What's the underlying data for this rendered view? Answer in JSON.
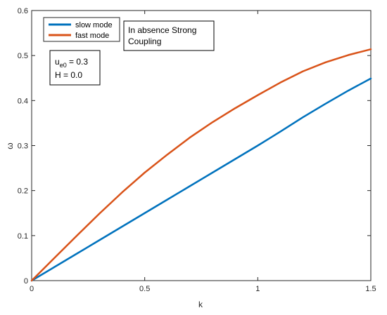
{
  "chart_data": {
    "type": "line",
    "title": "",
    "xlabel": "k",
    "ylabel": "ω",
    "xlim": [
      0,
      1.5
    ],
    "ylim": [
      0,
      0.6
    ],
    "xticks": [
      0,
      0.5,
      1,
      1.5
    ],
    "xtick_labels": [
      "0",
      "0.5",
      "1",
      "1.5"
    ],
    "yticks": [
      0,
      0.1,
      0.2,
      0.3,
      0.4,
      0.5,
      0.6
    ],
    "ytick_labels": [
      "0",
      "0.1",
      "0.2",
      "0.3",
      "0.4",
      "0.5",
      "0.6"
    ],
    "grid": false,
    "legend_position": "top-left",
    "x": [
      0,
      0.1,
      0.2,
      0.3,
      0.4,
      0.5,
      0.6,
      0.7,
      0.8,
      0.9,
      1.0,
      1.1,
      1.2,
      1.3,
      1.4,
      1.5
    ],
    "series": [
      {
        "name": "slow mode",
        "color": "#0072bd",
        "values": [
          0,
          0.03,
          0.06,
          0.09,
          0.12,
          0.15,
          0.18,
          0.21,
          0.24,
          0.27,
          0.3,
          0.331,
          0.363,
          0.393,
          0.422,
          0.449
        ]
      },
      {
        "name": "fast mode",
        "color": "#d95319",
        "values": [
          0,
          0.05,
          0.1,
          0.149,
          0.196,
          0.24,
          0.28,
          0.318,
          0.352,
          0.383,
          0.412,
          0.44,
          0.465,
          0.485,
          0.501,
          0.514
        ]
      }
    ]
  },
  "annotations": {
    "title_box": {
      "line1": "In absence Strong",
      "line2": "Coupling"
    },
    "param_box": {
      "line1_main": "u",
      "line1_sub": "e0",
      "line1_value": " = 0.3",
      "line2": "H = 0.0"
    }
  }
}
